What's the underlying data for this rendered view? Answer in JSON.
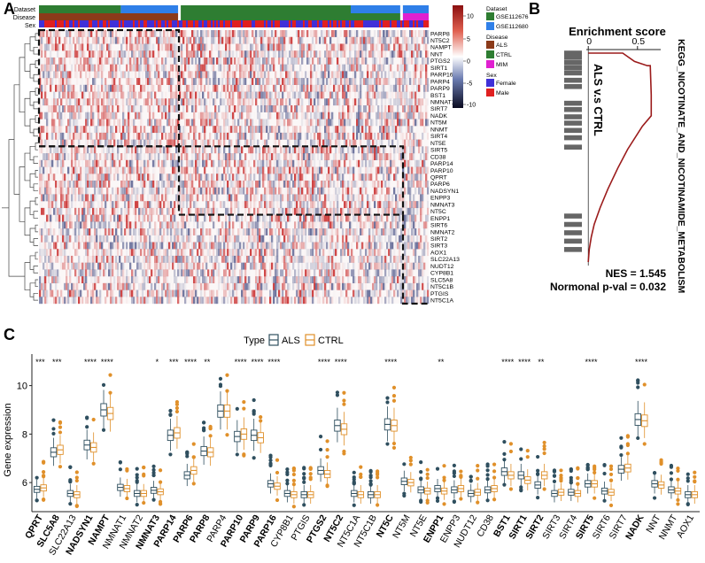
{
  "chart_data": [
    {
      "panel": "A",
      "type": "heatmap",
      "annotation_rows": [
        "Dataset",
        "Disease",
        "Sex"
      ],
      "genes": [
        "PARP8",
        "NT5C2",
        "NAMPT",
        "NNT",
        "PTGS2",
        "SIRT1",
        "PARP16",
        "PARP4",
        "PARP9",
        "BST1",
        "NMNAT1",
        "SIRT7",
        "NADK",
        "NT5M",
        "NNMT",
        "SIRT4",
        "NT5E",
        "SIRT5",
        "CD38",
        "PARP14",
        "PARP10",
        "QPRT",
        "PARP6",
        "NADSYN1",
        "ENPP3",
        "NMNAT3",
        "NT5C",
        "ENPP1",
        "SIRT6",
        "NMNAT2",
        "SIRT2",
        "SIRT3",
        "AOX1",
        "SLC22A13",
        "NUDT12",
        "CYP8B1",
        "SLC5A8",
        "NT5C1B",
        "PTGIS",
        "NT5C1A"
      ],
      "color_scale": {
        "ticks": [
          10,
          5,
          0,
          -5,
          -10
        ],
        "high": "#c0392b",
        "mid": "#ffffff",
        "low": "#1a1a40"
      },
      "legend": {
        "Dataset": [
          {
            "label": "GSE112676",
            "color": "#2e7d32"
          },
          {
            "label": "GSE112680",
            "color": "#2f7fe8"
          }
        ],
        "Disease": [
          {
            "label": "ALS",
            "color": "#8b3a1a"
          },
          {
            "label": "CTRL",
            "color": "#2e7d32"
          },
          {
            "label": "MIM",
            "color": "#e020d0"
          }
        ],
        "Sex": [
          {
            "label": "Female",
            "color": "#4030d8"
          },
          {
            "label": "Male",
            "color": "#e02020"
          }
        ]
      }
    },
    {
      "panel": "B",
      "type": "line",
      "title": "Enrichment score",
      "pathway": "KEGG_NICOTINATE_AND_NICOTINAMIDE_METABOLISM",
      "comparison": "ALS v.s CTRL",
      "x_ticks": [
        "0",
        "0.5"
      ],
      "xlim": [
        -0.02,
        0.7
      ],
      "profile": [
        [
          0.0,
          0.0
        ],
        [
          0.2,
          0.0
        ],
        [
          0.35,
          0.0
        ],
        [
          0.47,
          0.04
        ],
        [
          0.6,
          0.06
        ],
        [
          0.63,
          0.06
        ],
        [
          0.64,
          0.2
        ],
        [
          0.64,
          0.3
        ],
        [
          0.55,
          0.35
        ],
        [
          0.4,
          0.46
        ],
        [
          0.3,
          0.55
        ],
        [
          0.2,
          0.65
        ],
        [
          0.12,
          0.74
        ],
        [
          0.06,
          0.82
        ],
        [
          0.03,
          0.88
        ],
        [
          0.01,
          0.94
        ],
        [
          0.0,
          1.0
        ]
      ],
      "hit_positions": [
        0.0,
        0.02,
        0.045,
        0.07,
        0.095,
        0.13,
        0.16,
        0.24,
        0.27,
        0.305,
        0.335,
        0.37,
        0.405,
        0.45,
        0.78,
        0.82,
        0.86,
        0.9,
        0.94
      ],
      "nes_text": "NES = 1.545",
      "pval_text": "Normonal p-val = 0.032"
    },
    {
      "panel": "C",
      "type": "box",
      "ylabel": "Gene expression",
      "legend_title": "Type",
      "y_ticks": [
        6,
        8,
        10
      ],
      "ylim": [
        4.8,
        11.3
      ],
      "series": [
        {
          "name": "ALS",
          "color": "#2f4f5f"
        },
        {
          "name": "CTRL",
          "color": "#e0902a"
        }
      ],
      "genes": [
        "QPRT",
        "SLC5A8",
        "SLC22A13",
        "NADSYN1",
        "NAMPT",
        "NMNAT1",
        "NMNAT2",
        "NMNAT3",
        "PARP14",
        "PARP6",
        "PARP8",
        "PARP4",
        "PARP10",
        "PARP9",
        "PARP16",
        "CYP8B1",
        "PTGIS",
        "PTGS2",
        "NT5C2",
        "NT5C1A",
        "NT5C1B",
        "NT5C",
        "NT5M",
        "NT5E",
        "ENPP1",
        "ENPP3",
        "NUDT12",
        "CD38",
        "BST1",
        "SIRT1",
        "SIRT2",
        "SIRT3",
        "SIRT4",
        "SIRT5",
        "SIRT6",
        "SIRT7",
        "NADK",
        "NNT",
        "NNMT",
        "AOX1"
      ],
      "significance": [
        "***",
        "***",
        "",
        "****",
        "****",
        "",
        "",
        "*",
        "***",
        "****",
        "**",
        "",
        "****",
        "****",
        "****",
        "",
        "",
        "****",
        "****",
        "",
        "",
        "****",
        "",
        "",
        "**",
        "",
        "",
        "",
        "****",
        "****",
        "**",
        "",
        "",
        "****",
        "",
        "",
        "****",
        "",
        "",
        ""
      ],
      "medians_als": [
        5.72,
        7.25,
        5.55,
        7.55,
        9.0,
        5.8,
        5.55,
        5.68,
        7.95,
        6.3,
        7.3,
        8.95,
        7.9,
        7.95,
        5.95,
        5.55,
        5.5,
        6.5,
        8.35,
        5.55,
        5.5,
        8.4,
        6.05,
        5.7,
        5.75,
        5.7,
        5.55,
        5.7,
        6.45,
        6.3,
        5.9,
        5.55,
        5.6,
        5.95,
        5.65,
        6.55,
        8.6,
        5.95,
        5.7,
        5.5
      ],
      "medians_ctrl": [
        5.78,
        7.35,
        5.5,
        7.45,
        8.85,
        5.75,
        5.55,
        5.62,
        8.05,
        6.5,
        7.25,
        8.95,
        8.0,
        7.85,
        5.85,
        5.5,
        5.5,
        6.35,
        8.2,
        5.5,
        5.5,
        8.35,
        6.0,
        5.65,
        5.65,
        5.75,
        5.6,
        5.75,
        6.3,
        6.1,
        6.3,
        5.6,
        5.55,
        5.95,
        5.6,
        6.6,
        8.55,
        5.9,
        5.65,
        5.5
      ]
    }
  ]
}
